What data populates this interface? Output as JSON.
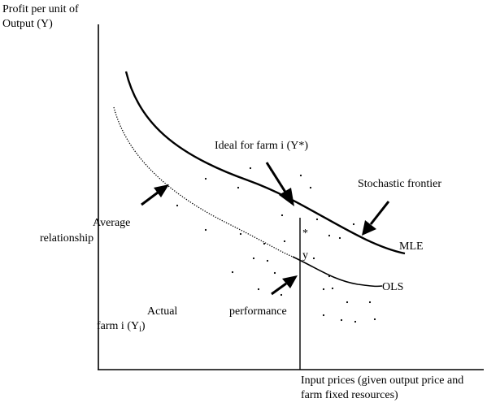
{
  "y_axis_label": [
    "Profit per unit of",
    "Output (Y)"
  ],
  "x_axis_label": [
    "Input prices (given output price and",
    "farm fixed resources)"
  ],
  "labels": {
    "ideal": "Ideal for farm i (Y*)",
    "stochastic_frontier": "Stochastic frontier",
    "mle": "MLE",
    "ols": "OLS",
    "average_line1": "Average",
    "average_line2": "relationship",
    "actual_line1": "Actual",
    "actual_line2_prefix": "farm i (Y",
    "actual_line2_sub": "i",
    "actual_line2_suffix": ")",
    "performance": "performance",
    "star_marker": "*",
    "y_marker": "y"
  }
}
